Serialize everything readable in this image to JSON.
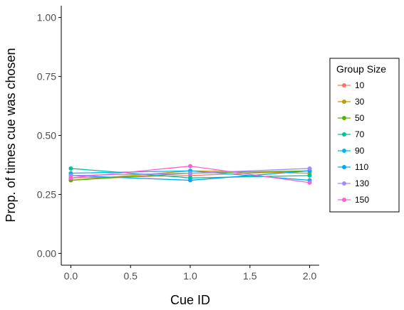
{
  "chart_data": {
    "type": "line",
    "xlabel": "Cue ID",
    "ylabel": "Prop. of times cue was chosen",
    "x": [
      0.0,
      1.0,
      2.0
    ],
    "xlim": [
      -0.08,
      2.08
    ],
    "ylim": [
      -0.05,
      1.05
    ],
    "xticks": [
      0.0,
      0.5,
      1.0,
      1.5,
      2.0
    ],
    "xtick_labels": [
      "0.0",
      "0.5",
      "1.0",
      "1.5",
      "2.0"
    ],
    "yticks": [
      0.0,
      0.25,
      0.5,
      0.75,
      1.0
    ],
    "ytick_labels": [
      "0.00",
      "0.25",
      "0.50",
      "0.75",
      "1.00"
    ],
    "grid": false,
    "legend": {
      "title": "Group Size",
      "placement": "right"
    },
    "series": [
      {
        "name": "10",
        "color": "#F8766D",
        "values": [
          0.32,
          0.33,
          0.35
        ]
      },
      {
        "name": "30",
        "color": "#C49A00",
        "values": [
          0.31,
          0.35,
          0.34
        ]
      },
      {
        "name": "50",
        "color": "#53B400",
        "values": [
          0.31,
          0.34,
          0.35
        ]
      },
      {
        "name": "70",
        "color": "#00C094",
        "values": [
          0.36,
          0.32,
          0.33
        ]
      },
      {
        "name": "90",
        "color": "#00B6EB",
        "values": [
          0.34,
          0.35,
          0.31
        ]
      },
      {
        "name": "110",
        "color": "#06A4FF",
        "values": [
          0.33,
          0.31,
          0.35
        ]
      },
      {
        "name": "130",
        "color": "#A58AFF",
        "values": [
          0.33,
          0.34,
          0.36
        ]
      },
      {
        "name": "150",
        "color": "#FB61D7",
        "values": [
          0.32,
          0.37,
          0.3
        ]
      }
    ]
  }
}
